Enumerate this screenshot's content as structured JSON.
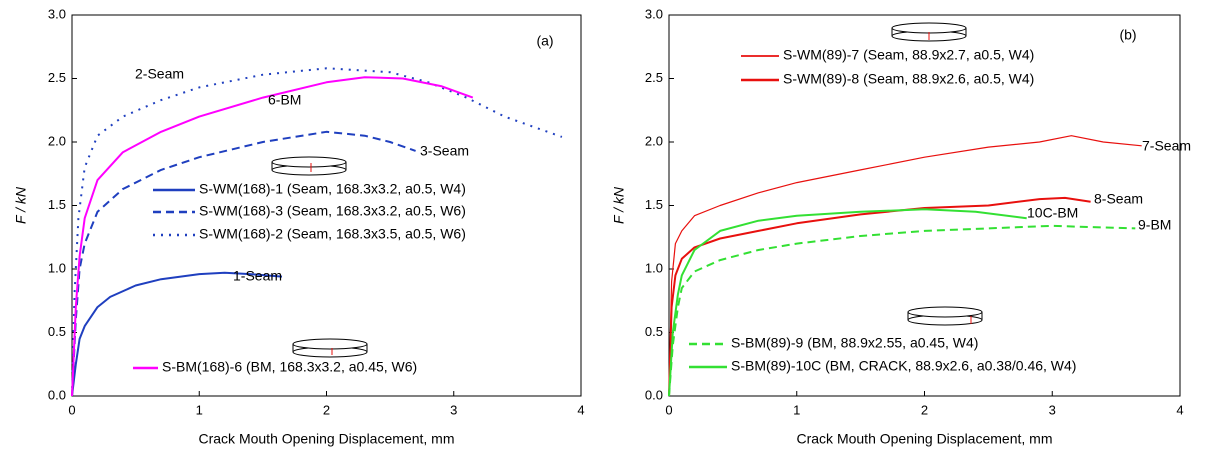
{
  "chart_data": [
    {
      "type": "line",
      "panel_label": "(a)",
      "y_label": "F / kN",
      "x_label": "Crack Mouth Opening Displacement, mm",
      "xlim": [
        0,
        4
      ],
      "xticks": [
        0,
        1,
        2,
        3,
        4
      ],
      "ylim": [
        0,
        3
      ],
      "yticks": [
        {
          "value": 0,
          "label": "0.0"
        },
        0.5,
        {
          "value": 1,
          "label": "1.0"
        },
        1.5,
        {
          "value": 2,
          "label": "2.0"
        },
        2.5,
        {
          "value": 3,
          "label": "3.0"
        }
      ],
      "annotations": [
        "2-Seam",
        "6-BM",
        "3-Seam",
        "1-Seam"
      ],
      "series": [
        {
          "name": "S-WM(168)-1 (Seam, 168.3x3.2, a0.5, W4)",
          "color": "#1f3fbf",
          "style": "solid",
          "x": [
            0,
            0.03,
            0.06,
            0.1,
            0.2,
            0.3,
            0.5,
            0.7,
            1.0,
            1.2,
            1.4,
            1.65
          ],
          "values": [
            0,
            0.25,
            0.45,
            0.55,
            0.7,
            0.78,
            0.87,
            0.92,
            0.96,
            0.97,
            0.96,
            0.94
          ]
        },
        {
          "name": "S-WM(168)-3 (Seam, 168.3x3.2, a0.5, W6)",
          "color": "#1f3fbf",
          "style": "dashed",
          "x": [
            0,
            0.03,
            0.06,
            0.1,
            0.2,
            0.4,
            0.7,
            1.0,
            1.5,
            2.0,
            2.3,
            2.5,
            2.7
          ],
          "values": [
            0,
            0.6,
            1.0,
            1.2,
            1.45,
            1.63,
            1.78,
            1.88,
            2.0,
            2.08,
            2.05,
            2.0,
            1.93
          ]
        },
        {
          "name": "S-WM(168)-2 (Seam, 168.3x3.5, a0.5, W6)",
          "color": "#1f3fbf",
          "style": "dotted",
          "x": [
            0,
            0.02,
            0.05,
            0.1,
            0.2,
            0.4,
            0.7,
            1.0,
            1.5,
            2.0,
            2.5,
            2.8,
            3.1,
            3.4,
            3.85
          ],
          "values": [
            0,
            0.8,
            1.4,
            1.8,
            2.05,
            2.2,
            2.33,
            2.43,
            2.53,
            2.58,
            2.55,
            2.47,
            2.35,
            2.2,
            2.04
          ]
        },
        {
          "name": "S-BM(168)-6 (BM, 168.3x3.2, a0.45, W6)",
          "color": "#ff00ff",
          "style": "solid",
          "x": [
            0,
            0.03,
            0.06,
            0.1,
            0.2,
            0.4,
            0.7,
            1.0,
            1.5,
            2.0,
            2.3,
            2.6,
            2.9,
            3.15
          ],
          "values": [
            0,
            0.7,
            1.1,
            1.4,
            1.7,
            1.92,
            2.08,
            2.2,
            2.35,
            2.47,
            2.51,
            2.5,
            2.44,
            2.35
          ]
        }
      ]
    },
    {
      "type": "line",
      "panel_label": "(b)",
      "y_label": "F / kN",
      "x_label": "Crack Mouth Opening Displacement, mm",
      "xlim": [
        0,
        4
      ],
      "xticks": [
        0,
        1,
        2,
        3,
        4
      ],
      "ylim": [
        0,
        3
      ],
      "yticks": [
        {
          "value": 0,
          "label": "0.0"
        },
        0.5,
        {
          "value": 1,
          "label": "1.0"
        },
        1.5,
        {
          "value": 2,
          "label": "2.0"
        },
        2.5,
        {
          "value": 3,
          "label": "3.0"
        }
      ],
      "annotations": [
        "7-Seam",
        "8-Seam",
        "10C-BM",
        "9-BM"
      ],
      "series": [
        {
          "name": "S-WM(89)-7 (Seam, 88.9x2.7, a0.5, W4)",
          "color": "#e8100e",
          "style": "thin",
          "x": [
            0,
            0.02,
            0.05,
            0.1,
            0.2,
            0.4,
            0.7,
            1.0,
            1.5,
            2.0,
            2.5,
            2.9,
            3.15,
            3.4,
            3.7
          ],
          "values": [
            0,
            0.9,
            1.2,
            1.3,
            1.42,
            1.5,
            1.6,
            1.68,
            1.78,
            1.88,
            1.96,
            2.0,
            2.05,
            2.0,
            1.97
          ]
        },
        {
          "name": "S-WM(89)-8 (Seam, 88.9x2.6, a0.5, W4)",
          "color": "#e8100e",
          "style": "solid",
          "x": [
            0,
            0.02,
            0.05,
            0.1,
            0.2,
            0.4,
            0.7,
            1.0,
            1.5,
            2.0,
            2.5,
            2.9,
            3.1,
            3.3
          ],
          "values": [
            0,
            0.7,
            0.95,
            1.08,
            1.17,
            1.24,
            1.3,
            1.36,
            1.43,
            1.48,
            1.5,
            1.55,
            1.56,
            1.53
          ]
        },
        {
          "name": "S-BM(89)-9 (BM, 88.9x2.55, a0.45, W4)",
          "color": "#33e033",
          "style": "dashed",
          "x": [
            0,
            0.03,
            0.07,
            0.1,
            0.2,
            0.4,
            0.7,
            1.0,
            1.5,
            2.0,
            2.5,
            3.0,
            3.3,
            3.65
          ],
          "values": [
            0,
            0.4,
            0.7,
            0.85,
            0.98,
            1.07,
            1.15,
            1.2,
            1.26,
            1.3,
            1.32,
            1.34,
            1.33,
            1.32
          ]
        },
        {
          "name": "S-BM(89)-10C (BM, CRACK, 88.9x2.6, a0.38/0.46, W4)",
          "color": "#33e033",
          "style": "solid",
          "x": [
            0,
            0.03,
            0.07,
            0.1,
            0.2,
            0.4,
            0.7,
            1.0,
            1.5,
            2.0,
            2.4,
            2.8
          ],
          "values": [
            0,
            0.5,
            0.8,
            0.95,
            1.15,
            1.3,
            1.38,
            1.42,
            1.45,
            1.47,
            1.45,
            1.4
          ]
        }
      ]
    }
  ]
}
